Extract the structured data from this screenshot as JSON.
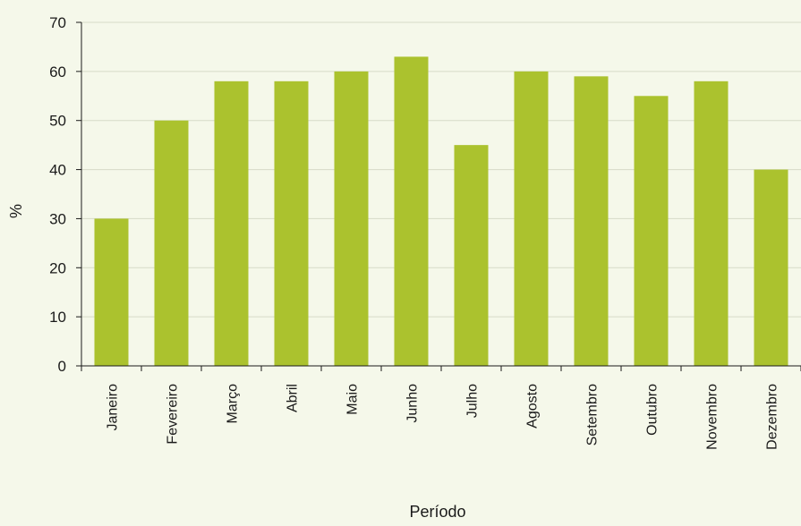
{
  "chart_data": {
    "type": "bar",
    "categories": [
      "Janeiro",
      "Fevereiro",
      "Março",
      "Abril",
      "Maio",
      "Junho",
      "Julho",
      "Agosto",
      "Setembro",
      "Outubro",
      "Novembro",
      "Dezembro"
    ],
    "values": [
      30,
      50,
      58,
      58,
      60,
      63,
      45,
      60,
      59,
      55,
      58,
      40
    ],
    "xlabel": "Período",
    "ylabel": "%",
    "ylim": [
      0,
      70
    ],
    "yticks": [
      0,
      10,
      20,
      30,
      40,
      50,
      60,
      70
    ],
    "grid": true,
    "bar_color": "#abc22e",
    "grid_color": "#d6dbc8",
    "axis_color": "#1a1a1a",
    "background_color": "#f5f8ea"
  }
}
